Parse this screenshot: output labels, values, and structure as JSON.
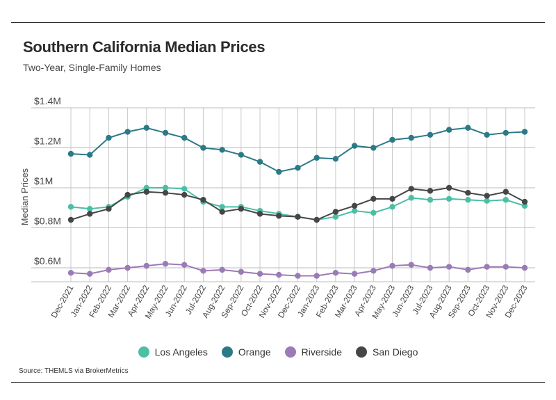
{
  "header": {
    "title": "Southern California Median Prices",
    "subtitle": "Two-Year, Single-Family Homes"
  },
  "footer": {
    "source": "Source:  THEMLS via BrokerMetrics"
  },
  "chart_data": {
    "type": "line",
    "title": "Southern California Median Prices",
    "subtitle": "Two-Year, Single-Family Homes",
    "xlabel": "",
    "ylabel": "Median Prices",
    "ylim": [
      0.53,
      1.4
    ],
    "yticks": [
      {
        "value": 1.4,
        "label": "$1.4M"
      },
      {
        "value": 1.2,
        "label": "$1.2M"
      },
      {
        "value": 1.0,
        "label": "$1M"
      },
      {
        "value": 0.8,
        "label": "$0.8M"
      },
      {
        "value": 0.6,
        "label": "$0.6M"
      }
    ],
    "grid": true,
    "legend_position": "bottom",
    "categories": [
      "Dec-2021",
      "Jan-2022",
      "Feb-2022",
      "Mar-2022",
      "Apr-2022",
      "May-2022",
      "Jun-2022",
      "Jul-2022",
      "Aug-2022",
      "Sep-2022",
      "Oct-2022",
      "Nov-2022",
      "Dec-2022",
      "Jan-2023",
      "Feb-2023",
      "Mar-2023",
      "Apr-2023",
      "May-2023",
      "Jun-2023",
      "Jul-2023",
      "Aug-2023",
      "Sep-2023",
      "Oct-2023",
      "Nov-2023",
      "Dec-2023"
    ],
    "series": [
      {
        "name": "Los Angeles",
        "color": "#4bbfa6",
        "values": [
          0.905,
          0.895,
          0.905,
          0.955,
          1.0,
          1.0,
          0.995,
          0.93,
          0.905,
          0.905,
          0.885,
          0.87,
          0.855,
          0.84,
          0.855,
          0.885,
          0.875,
          0.905,
          0.95,
          0.94,
          0.945,
          0.94,
          0.935,
          0.94,
          0.91
        ]
      },
      {
        "name": "Orange",
        "color": "#2a7a87",
        "values": [
          1.17,
          1.165,
          1.25,
          1.28,
          1.3,
          1.275,
          1.25,
          1.2,
          1.19,
          1.165,
          1.13,
          1.08,
          1.1,
          1.15,
          1.145,
          1.21,
          1.2,
          1.24,
          1.25,
          1.265,
          1.29,
          1.3,
          1.265,
          1.275,
          1.28
        ]
      },
      {
        "name": "Riverside",
        "color": "#9b7bb6",
        "values": [
          0.575,
          0.57,
          0.59,
          0.6,
          0.61,
          0.62,
          0.615,
          0.585,
          0.59,
          0.58,
          0.57,
          0.565,
          0.56,
          0.56,
          0.575,
          0.57,
          0.585,
          0.61,
          0.615,
          0.6,
          0.605,
          0.59,
          0.605,
          0.605,
          0.6
        ]
      },
      {
        "name": "San Diego",
        "color": "#464646",
        "values": [
          0.84,
          0.87,
          0.895,
          0.965,
          0.98,
          0.975,
          0.965,
          0.94,
          0.88,
          0.895,
          0.87,
          0.86,
          0.855,
          0.84,
          0.88,
          0.91,
          0.945,
          0.945,
          0.995,
          0.985,
          1.0,
          0.975,
          0.96,
          0.98,
          0.93
        ]
      }
    ]
  }
}
